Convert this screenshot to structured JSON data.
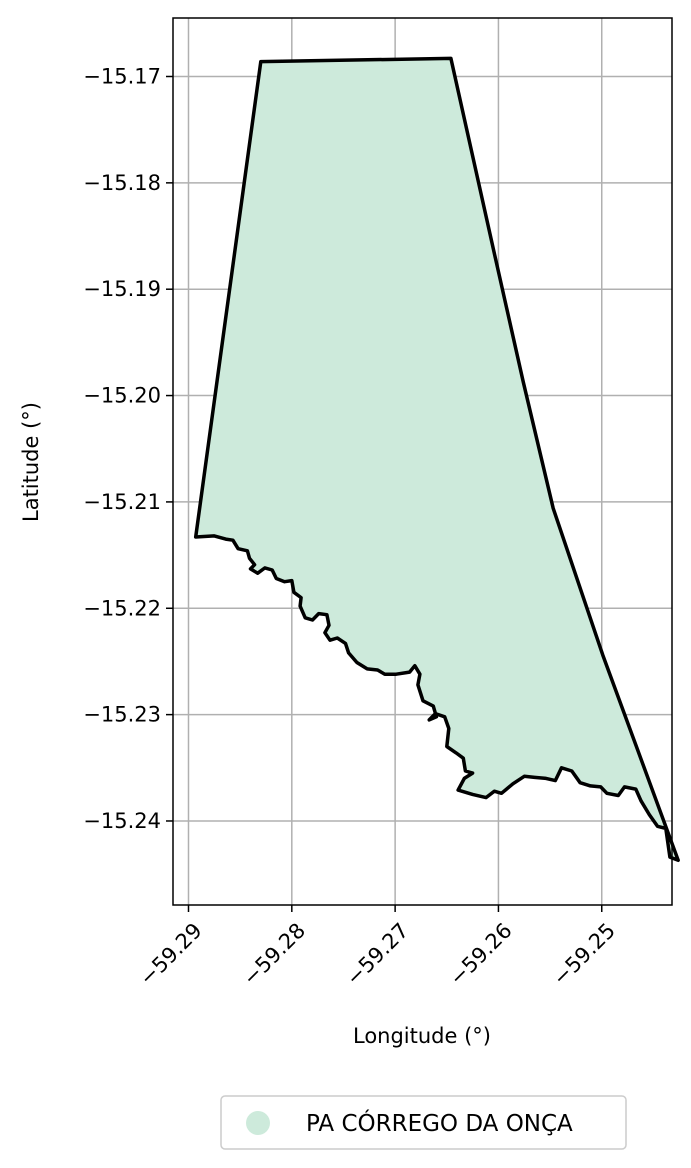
{
  "chart_data": {
    "type": "map",
    "xlabel": "Longitude (°)",
    "ylabel": "Latitude (°)",
    "xlim": [
      -59.2915,
      -59.2432
    ],
    "ylim": [
      -15.2479,
      -15.1645
    ],
    "grid": true,
    "x_ticks": [
      -59.29,
      -59.28,
      -59.27,
      -59.26,
      -59.25
    ],
    "x_tick_labels": [
      "−59.29",
      "−59.28",
      "−59.27",
      "−59.26",
      "−59.25"
    ],
    "y_ticks": [
      -15.17,
      -15.18,
      -15.19,
      -15.2,
      -15.21,
      -15.22,
      -15.23,
      -15.24
    ],
    "y_tick_labels": [
      "−15.17",
      "−15.18",
      "−15.19",
      "−15.20",
      "−15.21",
      "−15.22",
      "−15.23",
      "−15.24"
    ],
    "legend": {
      "placement": "bottom-center",
      "entries": [
        {
          "label": "PA CÓRREGO DA ONÇA",
          "color": "#cdeadb",
          "marker": "circle"
        }
      ]
    },
    "series": [
      {
        "name": "PA CÓRREGO DA ONÇA",
        "fill": "#cdeadb",
        "stroke": "#000000",
        "boundary": [
          [
            -59.2893,
            -15.2133
          ],
          [
            -59.2875,
            -15.2132
          ],
          [
            -59.2864,
            -15.2135
          ],
          [
            -59.2857,
            -15.2136
          ],
          [
            -59.2852,
            -15.2144
          ],
          [
            -59.2843,
            -15.2146
          ],
          [
            -59.2841,
            -15.2153
          ],
          [
            -59.2836,
            -15.2159
          ],
          [
            -59.284,
            -15.2163
          ],
          [
            -59.2833,
            -15.2167
          ],
          [
            -59.2826,
            -15.2162
          ],
          [
            -59.2819,
            -15.2164
          ],
          [
            -59.2815,
            -15.2172
          ],
          [
            -59.2807,
            -15.2175
          ],
          [
            -59.28,
            -15.2174
          ],
          [
            -59.2798,
            -15.2185
          ],
          [
            -59.2791,
            -15.219
          ],
          [
            -59.2792,
            -15.2198
          ],
          [
            -59.2787,
            -15.2209
          ],
          [
            -59.278,
            -15.2211
          ],
          [
            -59.2774,
            -15.2205
          ],
          [
            -59.2766,
            -15.2206
          ],
          [
            -59.2764,
            -15.2216
          ],
          [
            -59.2768,
            -15.2223
          ],
          [
            -59.2763,
            -15.223
          ],
          [
            -59.2756,
            -15.2228
          ],
          [
            -59.2748,
            -15.2233
          ],
          [
            -59.2745,
            -15.2242
          ],
          [
            -59.2737,
            -15.2251
          ],
          [
            -59.2727,
            -15.2257
          ],
          [
            -59.2717,
            -15.2258
          ],
          [
            -59.271,
            -15.2262
          ],
          [
            -59.2699,
            -15.2262
          ],
          [
            -59.2686,
            -15.226
          ],
          [
            -59.2681,
            -15.2254
          ],
          [
            -59.2676,
            -15.2262
          ],
          [
            -59.2678,
            -15.2272
          ],
          [
            -59.2673,
            -15.2287
          ],
          [
            -59.2663,
            -15.2292
          ],
          [
            -59.266,
            -15.2302
          ],
          [
            -59.2667,
            -15.2305
          ],
          [
            -59.2661,
            -15.2299
          ],
          [
            -59.2652,
            -15.2302
          ],
          [
            -59.2648,
            -15.2313
          ],
          [
            -59.265,
            -15.233
          ],
          [
            -59.2641,
            -15.2336
          ],
          [
            -59.2634,
            -15.2341
          ],
          [
            -59.2632,
            -15.2353
          ],
          [
            -59.2625,
            -15.2355
          ],
          [
            -59.2633,
            -15.236
          ],
          [
            -59.2639,
            -15.2371
          ],
          [
            -59.2625,
            -15.2375
          ],
          [
            -59.2612,
            -15.2378
          ],
          [
            -59.2604,
            -15.2372
          ],
          [
            -59.2597,
            -15.2374
          ],
          [
            -59.2586,
            -15.2365
          ],
          [
            -59.2575,
            -15.2358
          ],
          [
            -59.2565,
            -15.2359
          ],
          [
            -59.2554,
            -15.236
          ],
          [
            -59.2545,
            -15.2362
          ],
          [
            -59.2539,
            -15.235
          ],
          [
            -59.2529,
            -15.2353
          ],
          [
            -59.2521,
            -15.2364
          ],
          [
            -59.2511,
            -15.2367
          ],
          [
            -59.2501,
            -15.2368
          ],
          [
            -59.2495,
            -15.2374
          ],
          [
            -59.2484,
            -15.2376
          ],
          [
            -59.2478,
            -15.2368
          ],
          [
            -59.2467,
            -15.237
          ],
          [
            -59.2462,
            -15.2381
          ],
          [
            -59.2454,
            -15.2394
          ],
          [
            -59.2446,
            -15.2405
          ],
          [
            -59.2438,
            -15.2407
          ],
          [
            -59.2434,
            -15.2434
          ],
          [
            -59.2426,
            -15.2437
          ],
          [
            -59.2499,
            -15.2244
          ],
          [
            -59.2547,
            -15.2106
          ],
          [
            -59.2576,
            -15.1987
          ],
          [
            -59.2605,
            -15.1862
          ],
          [
            -59.2646,
            -15.1683
          ],
          [
            -59.283,
            -15.1686
          ],
          [
            -59.2893,
            -15.2133
          ]
        ]
      }
    ]
  }
}
